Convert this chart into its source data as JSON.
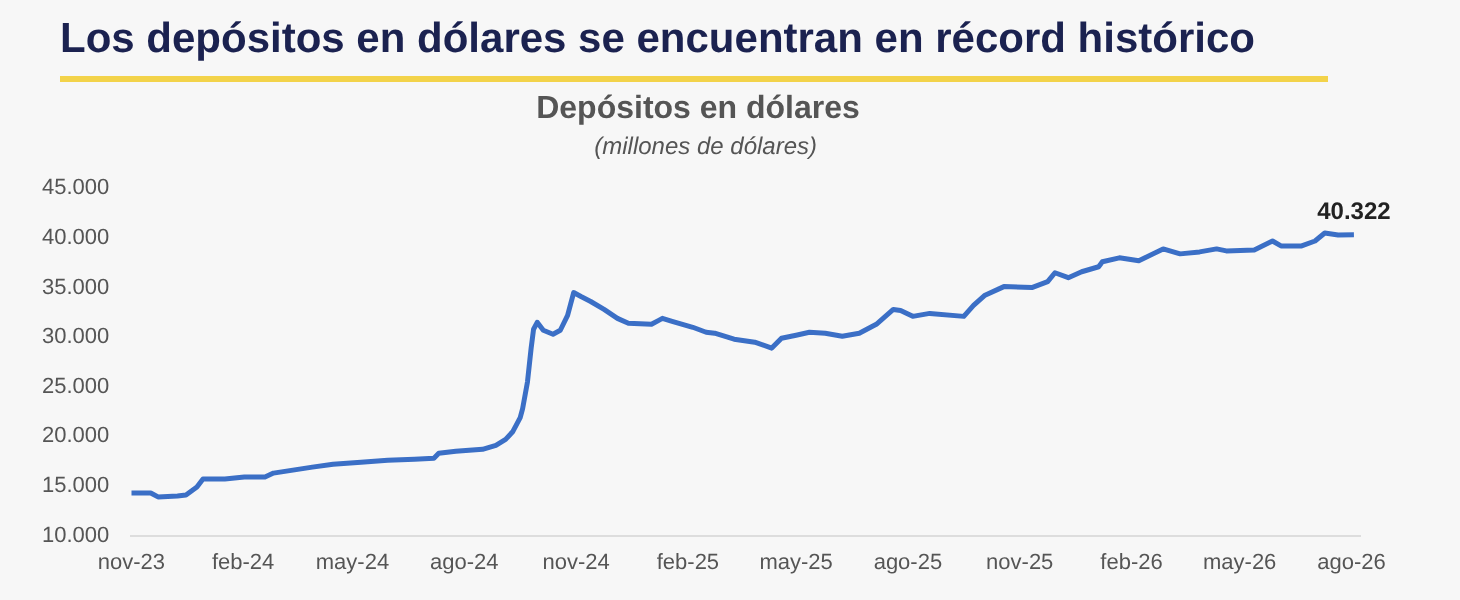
{
  "chart_data": {
    "type": "line",
    "title": "Los depósitos en dólares se encuentran en récord histórico",
    "subtitle": "Depósitos en dólares",
    "x": [
      "2023-11-01",
      "2023-11-17",
      "2023-11-23",
      "2023-12-09",
      "2023-12-16",
      "2023-12-25",
      "2023-12-30",
      "2024-01-17",
      "2024-02-02",
      "2024-02-19",
      "2024-02-26",
      "2024-03-13",
      "2024-03-29",
      "2024-04-15",
      "2024-05-08",
      "2024-05-30",
      "2024-06-21",
      "2024-07-07",
      "2024-07-11",
      "2024-07-25",
      "2024-08-16",
      "2024-08-27",
      "2024-09-04",
      "2024-09-10",
      "2024-09-16",
      "2024-09-18",
      "2024-09-22",
      "2024-09-25",
      "2024-09-27",
      "2024-09-30",
      "2024-10-05",
      "2024-10-13",
      "2024-10-19",
      "2024-10-25",
      "2024-10-30",
      "2024-11-05",
      "2024-11-13",
      "2024-11-24",
      "2024-12-05",
      "2024-12-14",
      "2025-01-02",
      "2025-01-08",
      "2025-01-11",
      "2025-01-19",
      "2025-02-05",
      "2025-02-16",
      "2025-02-23",
      "2025-03-11",
      "2025-03-28",
      "2025-04-11",
      "2025-04-19",
      "2025-05-01",
      "2025-05-12",
      "2025-05-25",
      "2025-06-08",
      "2025-06-22",
      "2025-07-06",
      "2025-07-20",
      "2025-07-26",
      "2025-08-05",
      "2025-08-19",
      "2025-09-16",
      "2025-09-24",
      "2025-10-03",
      "2025-10-19",
      "2025-11-11",
      "2025-11-24",
      "2025-11-30",
      "2025-12-11",
      "2025-12-22",
      "2026-01-05",
      "2026-01-08",
      "2026-01-22",
      "2026-02-07",
      "2026-02-27",
      "2026-03-13",
      "2026-03-29",
      "2026-04-12",
      "2026-04-20",
      "2026-05-13",
      "2026-05-28",
      "2026-06-04",
      "2026-06-21",
      "2026-07-02",
      "2026-07-10",
      "2026-07-21",
      "2026-08-03"
    ],
    "series": [
      {
        "color": "#3b6fc6",
        "values": [
          14300,
          14300,
          13900,
          14000,
          14100,
          14900,
          15700,
          15700,
          15900,
          15900,
          16300,
          16600,
          16900,
          17200,
          17400,
          17600,
          17700,
          17800,
          18300,
          18500,
          18700,
          19100,
          19700,
          20500,
          21900,
          22800,
          25500,
          28900,
          30800,
          31500,
          30700,
          30300,
          30700,
          32200,
          34500,
          34100,
          33600,
          32800,
          31900,
          31400,
          31300,
          31700,
          31900,
          31600,
          31000,
          30500,
          30400,
          29800,
          29500,
          28900,
          29900,
          30200,
          30500,
          30400,
          30100,
          30400,
          31300,
          32800,
          32700,
          32100,
          32400,
          32100,
          33200,
          34200,
          35100,
          35000,
          35600,
          36500,
          36000,
          36600,
          37100,
          37600,
          38000,
          37700,
          38900,
          38400,
          38600,
          38900,
          38700,
          38800,
          39700,
          39200,
          39200,
          39700,
          40500,
          40300,
          40322
        ]
      }
    ],
    "xlim": [
      "2023-11-01",
      "2026-08-08"
    ],
    "xticks": [
      {
        "value": "2023-11-01",
        "label": "nov-23"
      },
      {
        "value": "2024-02-01",
        "label": "feb-24"
      },
      {
        "value": "2024-05-01",
        "label": "may-24"
      },
      {
        "value": "2024-08-01",
        "label": "ago-24"
      },
      {
        "value": "2024-11-01",
        "label": "nov-24"
      },
      {
        "value": "2025-02-01",
        "label": "feb-25"
      },
      {
        "value": "2025-05-01",
        "label": "may-25"
      },
      {
        "value": "2025-08-01",
        "label": "ago-25"
      },
      {
        "value": "2025-11-01",
        "label": "nov-25"
      },
      {
        "value": "2026-02-01",
        "label": "feb-26"
      },
      {
        "value": "2026-05-01",
        "label": "may-26"
      },
      {
        "value": "2026-08-01",
        "label": "ago-26"
      }
    ],
    "ylim": [
      10000,
      45000
    ],
    "yticks": [
      {
        "value": 10000,
        "label": "10.000"
      },
      {
        "value": 15000,
        "label": "15.000"
      },
      {
        "value": 20000,
        "label": "20.000"
      },
      {
        "value": 25000,
        "label": "25.000"
      },
      {
        "value": 30000,
        "label": "30.000"
      },
      {
        "value": 35000,
        "label": "35.000"
      },
      {
        "value": 40000,
        "label": "40.000"
      },
      {
        "value": 45000,
        "label": "45.000"
      }
    ],
    "annotations": [
      "(millones de dólares)",
      {
        "text": "40.322",
        "x": "2026-08-03",
        "y": 40322
      }
    ]
  }
}
